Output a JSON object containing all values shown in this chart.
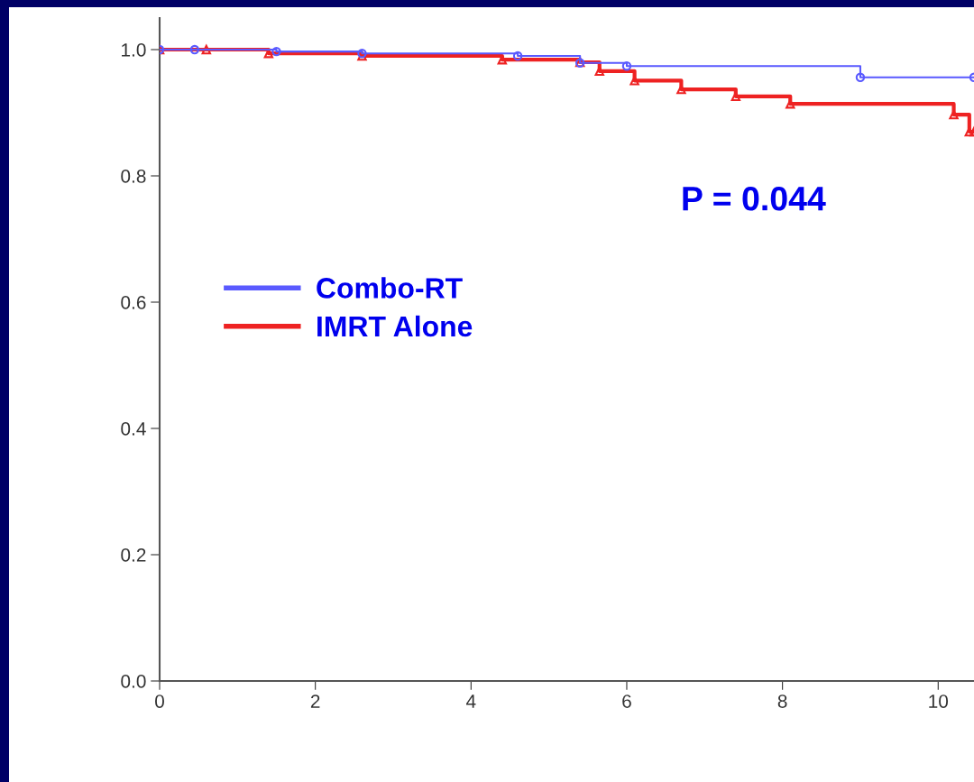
{
  "chart_data": {
    "type": "step",
    "legend": "left",
    "grid": false,
    "xlim": [
      0,
      10.46
    ],
    "xticks": [
      0,
      2,
      4,
      6,
      8,
      10
    ],
    "ylim": [
      0,
      1.05
    ],
    "yticks": [
      {
        "value": 0,
        "label": "0.0"
      },
      {
        "value": 0.2,
        "label": "0.2"
      },
      {
        "value": 0.4,
        "label": "0.4"
      },
      {
        "value": 0.6,
        "label": "0.6"
      },
      {
        "value": 0.8,
        "label": "0.8"
      },
      {
        "value": 1,
        "label": "1.0"
      }
    ],
    "annotations": [
      "P = 0.044"
    ],
    "series": [
      {
        "name": "Combo-RT",
        "color": "#5a5aff",
        "marker": "circle",
        "x": [
          0,
          0.45,
          1.5,
          2.6,
          4.6,
          5.4,
          6.0,
          9.0,
          10.46
        ],
        "values": [
          1.0,
          1.0,
          0.997,
          0.994,
          0.99,
          0.979,
          0.974,
          0.956,
          0.956
        ]
      },
      {
        "name": "IMRT Alone",
        "color": "#ee2222",
        "marker": "triangle",
        "x": [
          0,
          0.6,
          1.4,
          2.6,
          4.4,
          5.4,
          5.65,
          6.1,
          6.7,
          7.4,
          8.1,
          10.2,
          10.4,
          10.46
        ],
        "values": [
          1.0,
          1.0,
          0.994,
          0.99,
          0.984,
          0.98,
          0.966,
          0.951,
          0.937,
          0.926,
          0.914,
          0.897,
          0.87,
          0.87
        ]
      }
    ]
  }
}
